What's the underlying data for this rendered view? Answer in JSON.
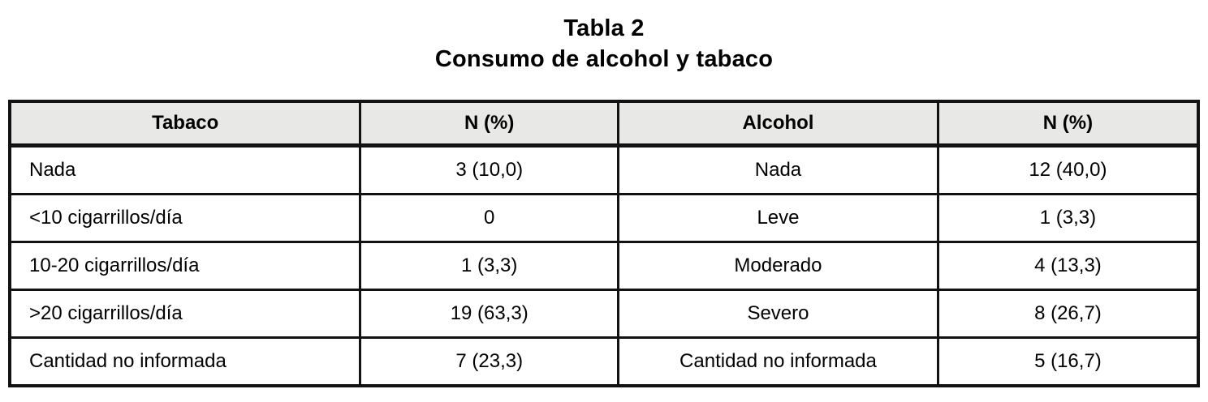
{
  "title": {
    "line1": "Tabla 2",
    "line2": "Consumo de alcohol y tabaco"
  },
  "colors": {
    "border": "#121212",
    "header_background": "#e8e8e6",
    "text": "#000000",
    "page_background": "#ffffff"
  },
  "chart_data": {
    "type": "table",
    "title": "Tabla 2 — Consumo de alcohol y tabaco",
    "headers": [
      "Tabaco",
      "N (%)",
      "Alcohol",
      "N (%)"
    ],
    "rows": [
      [
        "Nada",
        "3 (10,0)",
        "Nada",
        "12 (40,0)"
      ],
      [
        "<10 cigarrillos/día",
        "0",
        "Leve",
        "1 (3,3)"
      ],
      [
        "10-20 cigarrillos/día",
        "1 (3,3)",
        "Moderado",
        "4 (13,3)"
      ],
      [
        ">20 cigarrillos/día",
        "19 (63,3)",
        "Severo",
        "8 (26,7)"
      ],
      [
        "Cantidad no informada",
        "7 (23,3)",
        "Cantidad no informada",
        "5 (16,7)"
      ]
    ]
  }
}
